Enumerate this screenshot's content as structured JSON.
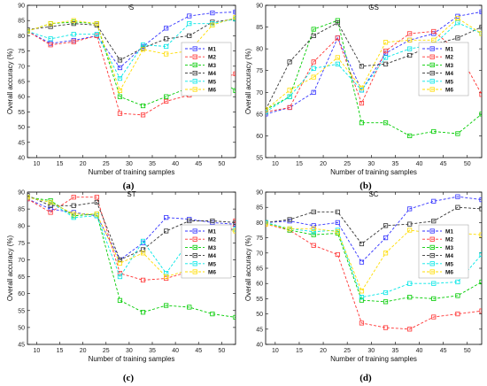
{
  "figure": {
    "series_colors": {
      "M1": "#3333ff",
      "M2": "#ff3333",
      "M3": "#00cc00",
      "M4": "#333333",
      "M5": "#00e6e6",
      "M6": "#ffdd00"
    }
  },
  "chart_data": [
    {
      "panel_letter": "(a)",
      "type": "line",
      "title": "S",
      "xlabel": "Number of training samples",
      "ylabel": "Overall accuracy (%)",
      "xlim": [
        8,
        53
      ],
      "ylim": [
        40,
        90
      ],
      "xticks": [
        10,
        15,
        20,
        25,
        30,
        35,
        40,
        45,
        50
      ],
      "yticks": [
        40,
        45,
        50,
        55,
        60,
        65,
        70,
        75,
        80,
        85,
        90
      ],
      "legend_position": "right",
      "x": [
        8,
        13,
        18,
        23,
        28,
        33,
        38,
        43,
        48,
        53
      ],
      "series": [
        {
          "name": "M1",
          "values": [
            81.5,
            77.5,
            78.5,
            80.0,
            69.5,
            76.5,
            82.5,
            86.5,
            87.5,
            87.8
          ]
        },
        {
          "name": "M2",
          "values": [
            81.5,
            77.0,
            78.0,
            80.0,
            54.5,
            54.0,
            58.5,
            60.5,
            65.0,
            67.5
          ]
        },
        {
          "name": "M3",
          "values": [
            81.5,
            84.0,
            84.5,
            84.0,
            60.0,
            57.0,
            60.0,
            63.0,
            67.0,
            62.0
          ]
        },
        {
          "name": "M4",
          "values": [
            82.0,
            83.0,
            84.0,
            83.5,
            72.0,
            76.0,
            79.0,
            80.0,
            84.5,
            85.5
          ]
        },
        {
          "name": "M5",
          "values": [
            81.5,
            79.0,
            80.5,
            80.5,
            66.0,
            77.0,
            76.5,
            84.0,
            84.0,
            85.5
          ]
        },
        {
          "name": "M6",
          "values": [
            81.5,
            84.0,
            85.0,
            84.0,
            62.0,
            75.5,
            74.0,
            75.0,
            83.5,
            86.0
          ]
        }
      ]
    },
    {
      "panel_letter": "(b)",
      "type": "line",
      "title": "GS",
      "xlabel": "Number of training samples",
      "ylabel": "Overall accuracy (%)",
      "xlim": [
        8,
        53
      ],
      "ylim": [
        55,
        90
      ],
      "xticks": [
        10,
        15,
        20,
        25,
        30,
        35,
        40,
        45,
        50
      ],
      "yticks": [
        55,
        60,
        65,
        70,
        75,
        80,
        85,
        90
      ],
      "legend_position": "right",
      "x": [
        8,
        13,
        18,
        23,
        28,
        33,
        38,
        43,
        48,
        53
      ],
      "series": [
        {
          "name": "M1",
          "values": [
            65.0,
            66.5,
            70.0,
            82.5,
            70.5,
            79.0,
            82.0,
            83.5,
            87.5,
            88.5
          ]
        },
        {
          "name": "M2",
          "values": [
            65.5,
            66.5,
            77.0,
            82.5,
            67.5,
            79.5,
            83.5,
            84.0,
            79.5,
            69.5
          ]
        },
        {
          "name": "M3",
          "values": [
            66.0,
            69.0,
            84.5,
            86.5,
            63.0,
            63.0,
            60.0,
            61.0,
            60.5,
            65.0
          ]
        },
        {
          "name": "M4",
          "values": [
            66.0,
            77.0,
            83.0,
            86.0,
            76.0,
            76.5,
            78.5,
            81.0,
            82.5,
            85.0
          ]
        },
        {
          "name": "M5",
          "values": [
            65.5,
            69.0,
            75.5,
            76.5,
            70.5,
            78.0,
            80.0,
            81.0,
            86.0,
            83.5
          ]
        },
        {
          "name": "M6",
          "values": [
            66.0,
            70.5,
            73.5,
            78.0,
            71.0,
            81.5,
            82.0,
            82.0,
            87.0,
            83.5
          ]
        }
      ]
    },
    {
      "panel_letter": "(c)",
      "type": "line",
      "title": "ST",
      "xlabel": "Number of training samples",
      "ylabel": "Overall accuracy (%)",
      "xlim": [
        8,
        53
      ],
      "ylim": [
        45,
        90
      ],
      "xticks": [
        10,
        15,
        20,
        25,
        30,
        35,
        40,
        45,
        50
      ],
      "yticks": [
        45,
        50,
        55,
        60,
        65,
        70,
        75,
        80,
        85,
        90
      ],
      "legend_position": "bottom-left",
      "x": [
        8,
        13,
        18,
        23,
        28,
        33,
        38,
        43,
        48,
        53
      ],
      "series": [
        {
          "name": "M1",
          "values": [
            88.0,
            85.0,
            84.0,
            83.0,
            70.0,
            75.0,
            82.5,
            82.0,
            81.0,
            80.5
          ]
        },
        {
          "name": "M2",
          "values": [
            88.0,
            84.0,
            88.5,
            88.5,
            66.0,
            64.0,
            64.5,
            66.5,
            66.5,
            81.5
          ]
        },
        {
          "name": "M3",
          "values": [
            88.5,
            87.5,
            83.0,
            83.5,
            58.0,
            54.5,
            56.5,
            56.0,
            54.0,
            53.0
          ]
        },
        {
          "name": "M4",
          "values": [
            89.0,
            86.0,
            86.0,
            87.0,
            70.0,
            73.0,
            78.5,
            81.5,
            81.5,
            81.0
          ]
        },
        {
          "name": "M5",
          "values": [
            88.5,
            87.0,
            82.5,
            83.0,
            65.0,
            75.5,
            66.0,
            75.5,
            78.0,
            79.0
          ]
        },
        {
          "name": "M6",
          "values": [
            88.5,
            87.0,
            83.5,
            83.5,
            69.0,
            72.0,
            65.0,
            67.0,
            78.5,
            78.5
          ]
        }
      ]
    },
    {
      "panel_letter": "(d)",
      "type": "line",
      "title": "SC",
      "xlabel": "Number of training samples",
      "ylabel": "Overall accuracy (%)",
      "xlim": [
        8,
        53
      ],
      "ylim": [
        40,
        90
      ],
      "xticks": [
        10,
        15,
        20,
        25,
        30,
        35,
        40,
        45,
        50
      ],
      "yticks": [
        40,
        45,
        50,
        55,
        60,
        65,
        70,
        75,
        80,
        85,
        90
      ],
      "legend_position": "bottom-left",
      "x": [
        8,
        13,
        18,
        23,
        28,
        33,
        38,
        43,
        48,
        53
      ],
      "series": [
        {
          "name": "M1",
          "values": [
            80.0,
            80.5,
            79.0,
            80.0,
            67.0,
            75.0,
            84.5,
            87.0,
            88.5,
            87.5
          ]
        },
        {
          "name": "M2",
          "values": [
            79.5,
            77.5,
            72.5,
            69.5,
            47.0,
            45.5,
            45.0,
            49.0,
            50.0,
            51.0
          ]
        },
        {
          "name": "M3",
          "values": [
            80.0,
            77.5,
            76.0,
            76.5,
            54.5,
            54.0,
            55.5,
            55.0,
            56.0,
            60.5
          ]
        },
        {
          "name": "M4",
          "values": [
            80.0,
            81.0,
            83.5,
            83.5,
            73.0,
            79.0,
            79.5,
            80.5,
            85.0,
            84.5
          ]
        },
        {
          "name": "M5",
          "values": [
            80.0,
            78.0,
            77.0,
            77.5,
            55.5,
            57.0,
            60.0,
            60.0,
            60.5,
            69.5
          ]
        },
        {
          "name": "M6",
          "values": [
            79.5,
            78.0,
            78.0,
            77.0,
            57.5,
            70.0,
            77.5,
            76.5,
            76.5,
            76.0
          ]
        }
      ]
    }
  ]
}
